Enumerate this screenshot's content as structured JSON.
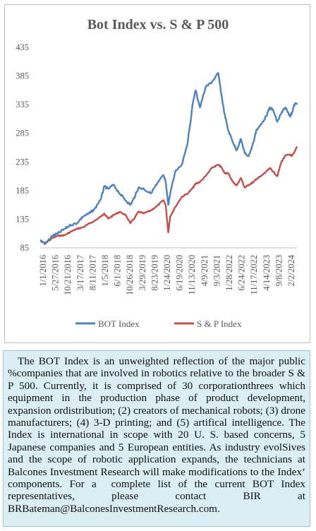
{
  "chart_data": {
    "type": "line",
    "title": "Bot Index vs. S & P 500",
    "xlabel": "",
    "ylabel": "",
    "ylim": [
      85,
      435
    ],
    "yticks": [
      85,
      135,
      185,
      235,
      285,
      335,
      385,
      435
    ],
    "grid": false,
    "legend_position": "bottom",
    "xticks": [
      "1/1/2016",
      "5/27/2016",
      "10/21/2016",
      "3/17/2017",
      "8/11/2017",
      "1/5/2018",
      "6/1/2018",
      "10/26/2018",
      "3/29/2019",
      "8/23/2019",
      "1/24/2020",
      "6/19/2020",
      "11/13/2020",
      "4/9/2021",
      "9/3/2021",
      "1/28/2022",
      "6/24/2022",
      "11/17/2022",
      "4/14/2023",
      "9/8/2023",
      "2/2/2024"
    ],
    "x": [
      "2016-01-01",
      "2016-03-01",
      "2016-05-27",
      "2016-08-01",
      "2016-10-21",
      "2017-01-01",
      "2017-03-17",
      "2017-06-01",
      "2017-08-11",
      "2017-10-15",
      "2018-01-05",
      "2018-02-10",
      "2018-04-01",
      "2018-06-01",
      "2018-08-15",
      "2018-10-26",
      "2018-12-24",
      "2019-02-15",
      "2019-03-29",
      "2019-06-01",
      "2019-08-23",
      "2019-11-01",
      "2020-01-24",
      "2020-02-20",
      "2020-03-23",
      "2020-04-15",
      "2020-06-19",
      "2020-09-01",
      "2020-11-13",
      "2021-01-15",
      "2021-02-15",
      "2021-04-09",
      "2021-06-15",
      "2021-09-03",
      "2021-11-15",
      "2021-12-20",
      "2022-01-28",
      "2022-03-15",
      "2022-05-10",
      "2022-06-24",
      "2022-08-15",
      "2022-09-30",
      "2022-11-17",
      "2023-01-15",
      "2023-02-15",
      "2023-04-14",
      "2023-06-15",
      "2023-08-01",
      "2023-09-08",
      "2023-10-27",
      "2023-12-15",
      "2024-02-02",
      "2024-03-28",
      "2024-04-19",
      "2024-05-20",
      "2024-06-20"
    ],
    "series": [
      {
        "name": "BOT Index",
        "color": "#4f81bd",
        "values": [
          98,
          92,
          106,
          110,
          118,
          125,
          128,
          140,
          145,
          152,
          172,
          192,
          188,
          195,
          180,
          168,
          160,
          175,
          190,
          188,
          180,
          195,
          212,
          200,
          160,
          180,
          220,
          230,
          270,
          340,
          360,
          330,
          365,
          375,
          390,
          355,
          320,
          290,
          270,
          255,
          275,
          250,
          245,
          270,
          290,
          300,
          315,
          330,
          325,
          305,
          320,
          330,
          315,
          320,
          335,
          338
        ]
      },
      {
        "name": "S & P Index",
        "color": "#c0504d",
        "values": [
          97,
          93,
          102,
          106,
          107,
          113,
          118,
          121,
          127,
          132,
          140,
          145,
          136,
          142,
          148,
          142,
          128,
          138,
          148,
          145,
          150,
          157,
          168,
          160,
          112,
          140,
          157,
          174,
          180,
          190,
          197,
          200,
          210,
          225,
          230,
          226,
          216,
          215,
          200,
          194,
          207,
          190,
          195,
          200,
          205,
          210,
          218,
          224,
          218,
          210,
          235,
          246,
          248,
          245,
          252,
          262
        ]
      }
    ]
  }
}
